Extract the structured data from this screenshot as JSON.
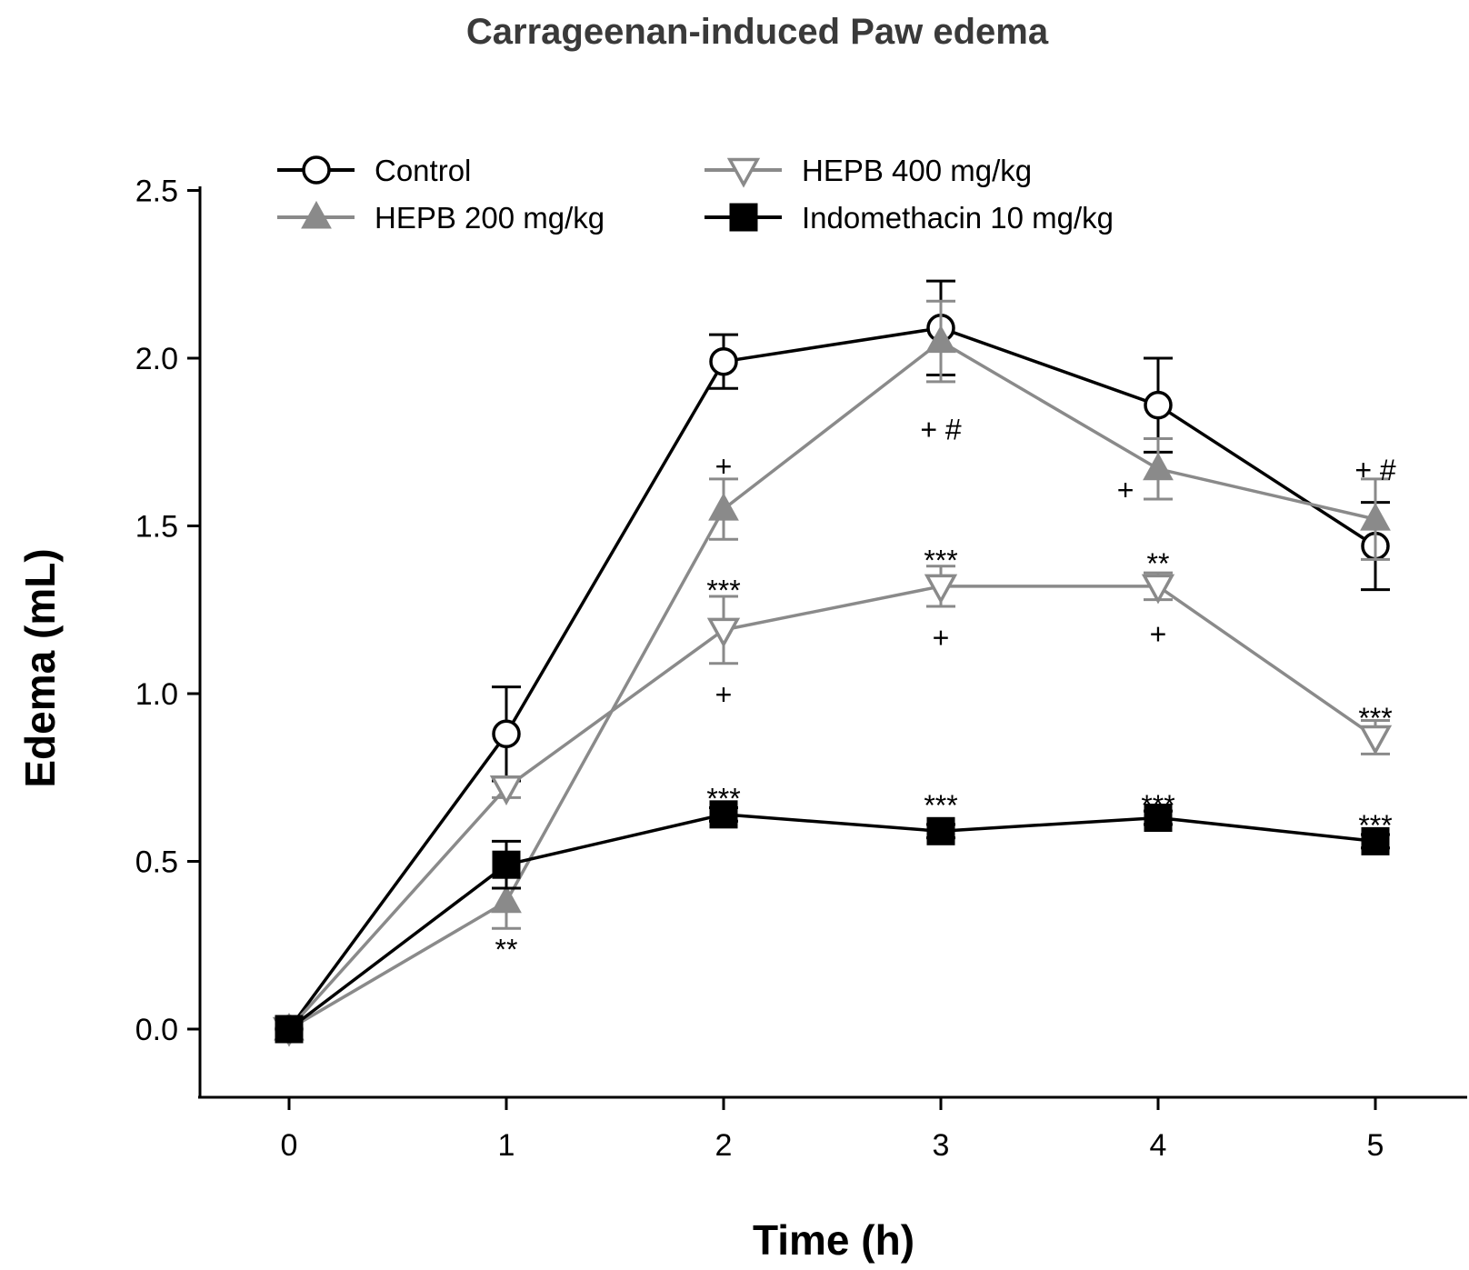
{
  "chart_data": {
    "type": "line",
    "title": "Carrageenan-induced Paw edema",
    "xlabel": "Time (h)",
    "ylabel": "Edema (mL)",
    "x": [
      0,
      1,
      2,
      3,
      4,
      5
    ],
    "xticks": [
      "0",
      "1",
      "2",
      "3",
      "4",
      "5"
    ],
    "yticks": [
      "0.0",
      "0.5",
      "1.0",
      "1.5",
      "2.0",
      "2.5"
    ],
    "xlim": [
      -0.4,
      5.4
    ],
    "ylim": [
      -0.2,
      2.5
    ],
    "legend": "top",
    "series": [
      {
        "name": "Control",
        "color": "#000000",
        "marker": "circle-open",
        "values": [
          0,
          0.88,
          1.99,
          2.09,
          1.86,
          1.44
        ],
        "errors": [
          0,
          0.14,
          0.08,
          0.14,
          0.14,
          0.13
        ]
      },
      {
        "name": "HEPB 200 mg/kg",
        "color": "#8a8a8a",
        "marker": "triangle-up-filled",
        "values": [
          0,
          0.38,
          1.55,
          2.05,
          1.67,
          1.52
        ],
        "errors": [
          0,
          0.08,
          0.09,
          0.12,
          0.09,
          0.12
        ]
      },
      {
        "name": "HEPB 400 mg/kg",
        "color": "#8a8a8a",
        "marker": "triangle-down-open",
        "values": [
          0,
          0.72,
          1.19,
          1.32,
          1.32,
          0.87
        ],
        "errors": [
          0,
          0.03,
          0.1,
          0.06,
          0.04,
          0.05
        ]
      },
      {
        "name": "Indomethacin 10 mg/kg",
        "color": "#000000",
        "marker": "square-filled",
        "values": [
          0,
          0.49,
          0.64,
          0.59,
          0.63,
          0.56
        ],
        "errors": [
          0,
          0.07,
          0.02,
          0.02,
          0.02,
          0.02
        ]
      }
    ],
    "annotations": [
      {
        "text": "**",
        "x": 1,
        "y": 0.24
      },
      {
        "text": "+",
        "x": 2,
        "y": 1.68
      },
      {
        "text": "***",
        "x": 2,
        "y": 1.31
      },
      {
        "text": "+",
        "x": 2,
        "y": 1.0
      },
      {
        "text": "***",
        "x": 2,
        "y": 0.69
      },
      {
        "text": "+ #",
        "x": 3,
        "y": 1.79
      },
      {
        "text": "***",
        "x": 3,
        "y": 1.4
      },
      {
        "text": "+",
        "x": 3,
        "y": 1.17
      },
      {
        "text": "***",
        "x": 3,
        "y": 0.67
      },
      {
        "text": "+",
        "x": 3.85,
        "y": 1.61
      },
      {
        "text": "**",
        "x": 4,
        "y": 1.39
      },
      {
        "text": "+",
        "x": 4,
        "y": 1.18
      },
      {
        "text": "***",
        "x": 4,
        "y": 0.67
      },
      {
        "text": "+ #",
        "x": 5,
        "y": 1.67
      },
      {
        "text": "***",
        "x": 5,
        "y": 0.93
      },
      {
        "text": "***",
        "x": 5,
        "y": 0.61
      }
    ]
  }
}
